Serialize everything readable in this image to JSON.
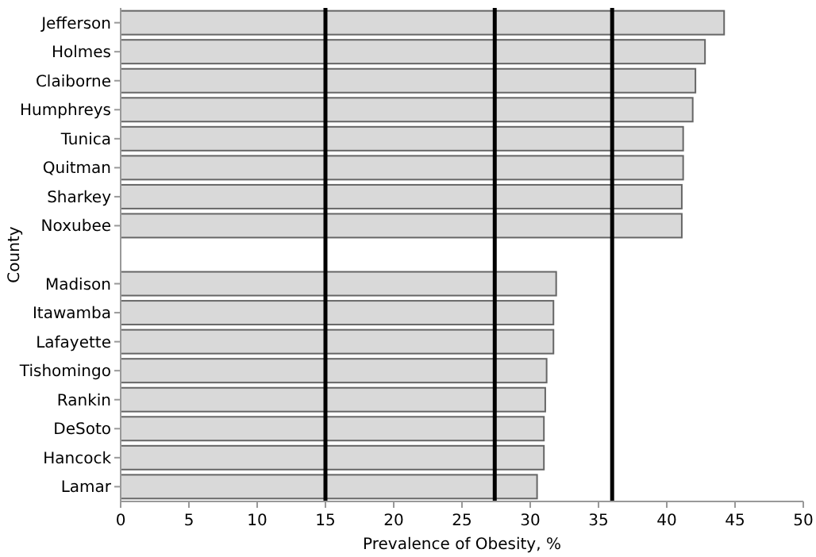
{
  "chart_data": {
    "type": "bar",
    "orientation": "horizontal",
    "xlabel": "Prevalence of Obesity, %",
    "ylabel": "County",
    "categories": [
      "Jefferson",
      "Holmes",
      "Claiborne",
      "Humphreys",
      "Tunica",
      "Quitman",
      "Sharkey",
      "Noxubee",
      null,
      "Madison",
      "Itawamba",
      "Lafayette",
      "Tishomingo",
      "Rankin",
      "DeSoto",
      "Hancock",
      "Lamar"
    ],
    "values": [
      44.2,
      42.8,
      42.1,
      41.9,
      41.2,
      41.2,
      41.1,
      41.1,
      null,
      31.9,
      31.7,
      31.7,
      31.2,
      31.1,
      31.0,
      31.0,
      30.5
    ],
    "color": "#d9d9d9",
    "xlim": [
      0,
      50
    ],
    "xticks": [
      0,
      5,
      10,
      15,
      20,
      25,
      30,
      35,
      40,
      45,
      50
    ],
    "ref_lines": [
      {
        "axis": "x",
        "value": 15,
        "color": "#000000"
      },
      {
        "axis": "x",
        "value": 27.4,
        "color": "#000000"
      },
      {
        "axis": "x",
        "value": 36,
        "color": "#000000"
      }
    ],
    "grid": false
  }
}
